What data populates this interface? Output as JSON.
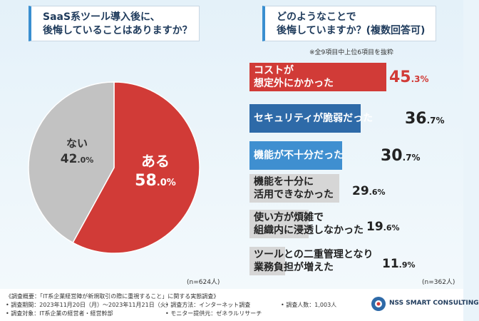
{
  "left_header": {
    "line1": "SaaS系ツール導入後に、",
    "line2": "後悔していることはありますか？"
  },
  "right_header": {
    "line1": "どのようなことで",
    "line2": "後悔していますか？(複数回答可)"
  },
  "right_note": "※全9項目中上位6項目を抜粋",
  "colors": {
    "red": "#d13b37",
    "gray": "#c2c2c2",
    "navy": "#2e6aa8",
    "blue": "#3f8fd0",
    "lightgray": "#d6d6d6",
    "accent": "#3a8fd0"
  },
  "chart_data": [
    {
      "type": "pie",
      "title": "SaaS系ツール導入後に、後悔していることはありますか？",
      "slices": [
        {
          "label": "ある",
          "value": 58.0,
          "display_int": "58",
          "display_dec": ".0%",
          "color": "#d13b37"
        },
        {
          "label": "ない",
          "value": 42.0,
          "display_int": "42",
          "display_dec": ".0%",
          "color": "#c2c2c2"
        }
      ],
      "n_label": "(n=624人)"
    },
    {
      "type": "bar",
      "title": "どのようなことで後悔していますか？(複数回答可)",
      "xlim": [
        0,
        50
      ],
      "categories": [
        [
          "コストが",
          "想定外にかかった"
        ],
        [
          "セキュリティが脆弱だった"
        ],
        [
          "機能が不十分だった"
        ],
        [
          "機能を十分に",
          "活用できなかった"
        ],
        [
          "使い方が煩雑で",
          "組織内に浸透しなかった"
        ],
        [
          "ツールとの二重管理となり",
          "業務負担が増えた"
        ]
      ],
      "values": [
        45.3,
        36.7,
        30.7,
        29.6,
        19.6,
        11.9
      ],
      "display_int": [
        "45",
        "36",
        "30",
        "29",
        "19",
        "11"
      ],
      "display_dec": [
        ".3%",
        ".7%",
        ".7%",
        ".6%",
        ".6%",
        ".9%"
      ],
      "n_label": "(n=362人)"
    }
  ],
  "footer": {
    "l1": "《調査概要：「IT系企業経営陣が新規取引の際に重視すること」に関する実態調査》",
    "l2a": "• 調査期間：2023年11月20日（月）〜2023年11月21日（火）",
    "l2b": "• 調査方法：インターネット調査",
    "l2c": "• 調査人数：1,003人",
    "l3a": "• 調査対象：IT系企業の経営者・経営幹部",
    "l3b": "• モニター提供元：ゼネラルリサーチ",
    "logo_text": "NSS SMART CONSULTING"
  }
}
